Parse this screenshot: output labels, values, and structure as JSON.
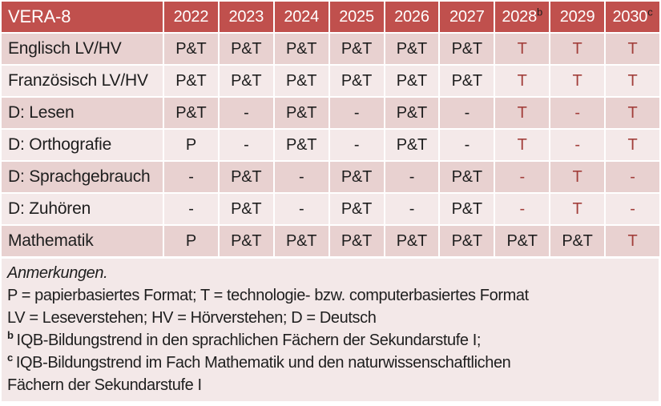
{
  "table": {
    "title": "VERA-8",
    "years": [
      {
        "label": "2022",
        "sup": ""
      },
      {
        "label": "2023",
        "sup": ""
      },
      {
        "label": "2024",
        "sup": ""
      },
      {
        "label": "2025",
        "sup": ""
      },
      {
        "label": "2026",
        "sup": ""
      },
      {
        "label": "2027",
        "sup": ""
      },
      {
        "label": "2028",
        "sup": "b"
      },
      {
        "label": "2029",
        "sup": ""
      },
      {
        "label": "2030",
        "sup": "c"
      }
    ],
    "rows": [
      {
        "label": "Englisch LV/HV",
        "values": [
          "P&T",
          "P&T",
          "P&T",
          "P&T",
          "P&T",
          "P&T",
          "T",
          "T",
          "T"
        ]
      },
      {
        "label": "Französisch LV/HV",
        "values": [
          "P&T",
          "P&T",
          "P&T",
          "P&T",
          "P&T",
          "P&T",
          "T",
          "T",
          "T"
        ]
      },
      {
        "label": "D: Lesen",
        "values": [
          "P&T",
          "-",
          "P&T",
          "-",
          "P&T",
          "-",
          "T",
          "-",
          "T"
        ]
      },
      {
        "label": "D: Orthografie",
        "values": [
          "P",
          "-",
          "P&T",
          "-",
          "P&T",
          "-",
          "T",
          "-",
          "T"
        ]
      },
      {
        "label": "D: Sprachgebrauch",
        "values": [
          "-",
          "P&T",
          "-",
          "P&T",
          "-",
          "P&T",
          "-",
          "T",
          "-"
        ]
      },
      {
        "label": "D: Zuhören",
        "values": [
          "-",
          "P&T",
          "-",
          "P&T",
          "-",
          "P&T",
          "-",
          "T",
          "-"
        ]
      },
      {
        "label": "Mathematik",
        "values": [
          "P",
          "P&T",
          "P&T",
          "P&T",
          "P&T",
          "P&T",
          "P&T",
          "P&T",
          "T"
        ]
      }
    ],
    "red_columns_from_index": 6
  },
  "notes": {
    "heading": "Anmerkungen.",
    "legend_formats": "P = papierbasiertes Format; T = technologie- bzw. computerbasiertes Format",
    "legend_abbreviations": "LV = Leseverstehen; HV = Hörverstehen; D = Deutsch",
    "footnotes": [
      {
        "marker": "b",
        "lines": [
          "IQB-Bildungstrend in den sprachlichen Fächern der Sekundarstufe I;"
        ]
      },
      {
        "marker": "c",
        "lines": [
          "IQB-Bildungstrend im Fach Mathematik und den naturwissenschaftlichen",
          "Fächern der Sekundarstufe I"
        ]
      }
    ]
  },
  "colors": {
    "header_bg": "#C0504D",
    "header_text": "#FFFFFF",
    "header_sup_text": "#1E1E1E",
    "band_dark": "#E8D1D0",
    "band_light": "#F4E9E9",
    "notes_bg": "#F3E8E8",
    "accent_red_text": "#A23F3B",
    "body_text": "#1E1E1E",
    "grid_gap": "#FFFFFF"
  }
}
